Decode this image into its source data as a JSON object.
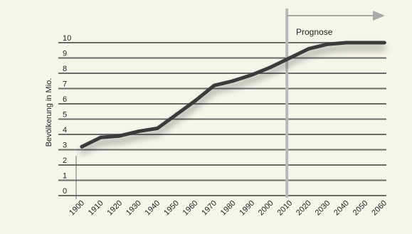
{
  "chart_data": {
    "type": "line",
    "title": "",
    "xlabel": "",
    "ylabel": "Bevölkerung in Mio.",
    "x": [
      1900,
      1910,
      1920,
      1930,
      1940,
      1950,
      1960,
      1970,
      1980,
      1990,
      2000,
      2010,
      2020,
      2030,
      2040,
      2050,
      2060
    ],
    "x_tick_labels": [
      "1900",
      "1910",
      "1920",
      "1930",
      "1940",
      "1950",
      "1960",
      "1970",
      "1980",
      "1990",
      "2000",
      "2010",
      "2020",
      "2030",
      "2040",
      "2050",
      "2060"
    ],
    "series": [
      {
        "values": [
          3.2,
          3.8,
          3.9,
          4.2,
          4.4,
          5.3,
          6.2,
          7.2,
          7.5,
          7.9,
          8.4,
          9.0,
          9.6,
          9.9,
          10.0,
          10.0,
          10.0
        ]
      }
    ],
    "y_tick_labels": [
      "0",
      "1",
      "2",
      "3",
      "4",
      "5",
      "6",
      "7",
      "8",
      "9",
      "10"
    ],
    "xlim": [
      1900,
      2060
    ],
    "ylim": [
      0,
      10
    ],
    "grid": true,
    "annotation": {
      "label": "Prognose",
      "from_year": 2010
    },
    "colors": {
      "line": "#3a3a3a",
      "grid": "#6b6b6b",
      "divider": "#b8b8b8",
      "arrow": "#a9a9a9",
      "background": "#f6f5ec"
    }
  }
}
